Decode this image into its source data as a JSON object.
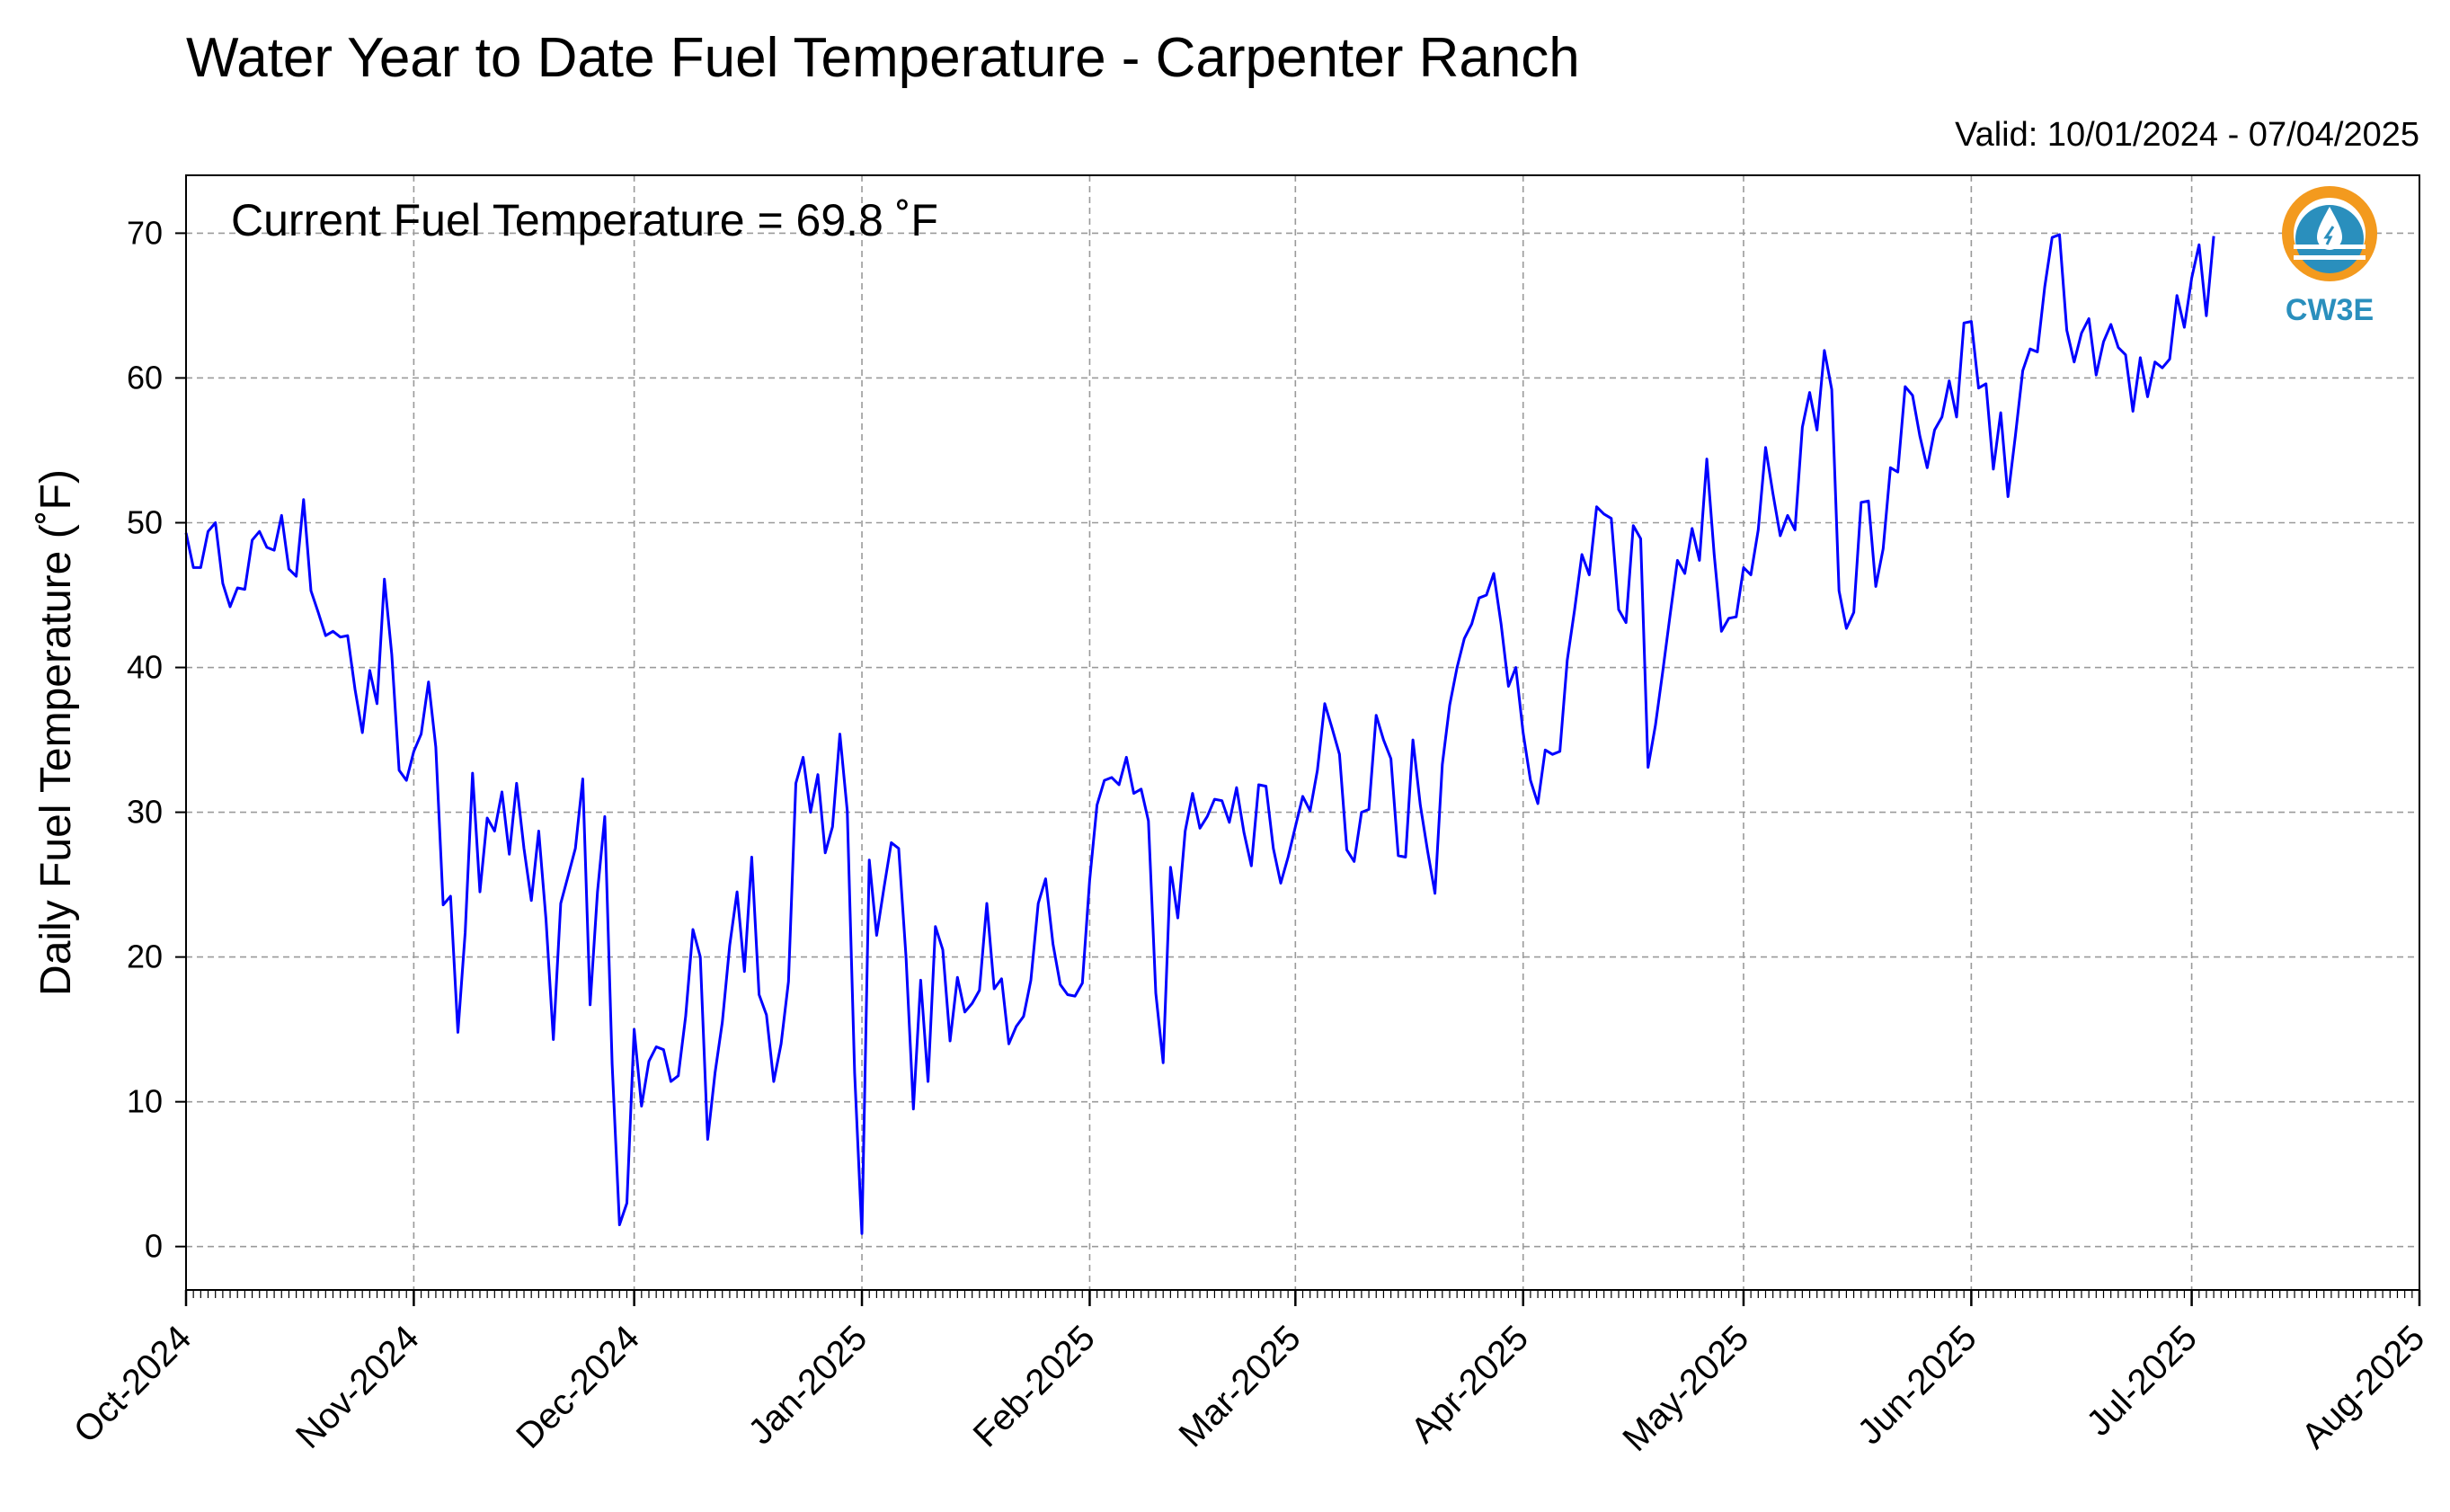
{
  "chart_data": {
    "type": "line",
    "title": "Water Year to Date Fuel Temperature - Carpenter Ranch",
    "subtitle": "Valid: 10/01/2024 - 07/04/2025",
    "ylabel": "Daily Fuel Temperature (˚F)",
    "xlabel": "",
    "annotation": "Current Fuel Temperature = 69.8 ˚F",
    "ylim": [
      -3,
      74
    ],
    "yticks": [
      0,
      10,
      20,
      30,
      40,
      50,
      60,
      70
    ],
    "xlim": [
      "2024-10-01",
      "2025-08-01"
    ],
    "xticks": [
      {
        "date": "2024-10-01",
        "label": "Oct-2024"
      },
      {
        "date": "2024-11-01",
        "label": "Nov-2024"
      },
      {
        "date": "2024-12-01",
        "label": "Dec-2024"
      },
      {
        "date": "2025-01-01",
        "label": "Jan-2025"
      },
      {
        "date": "2025-02-01",
        "label": "Feb-2025"
      },
      {
        "date": "2025-03-01",
        "label": "Mar-2025"
      },
      {
        "date": "2025-04-01",
        "label": "Apr-2025"
      },
      {
        "date": "2025-05-01",
        "label": "May-2025"
      },
      {
        "date": "2025-06-01",
        "label": "Jun-2025"
      },
      {
        "date": "2025-07-01",
        "label": "Jul-2025"
      },
      {
        "date": "2025-08-01",
        "label": "Aug-2025"
      }
    ],
    "grid": true,
    "line_color": "#0000ff",
    "series": [
      {
        "x_start": "2024-10-01",
        "x_step_days": 1,
        "values": [
          49.3,
          46.9,
          46.9,
          49.4,
          50.0,
          45.8,
          44.2,
          45.5,
          45.4,
          48.8,
          49.4,
          48.3,
          48.1,
          50.5,
          46.8,
          46.3,
          51.6,
          45.3,
          43.8,
          42.2,
          42.5,
          42.1,
          42.2,
          38.5,
          35.5,
          39.8,
          37.5,
          46.1,
          40.9,
          32.9,
          32.2,
          34.2,
          35.4,
          39.0,
          34.5,
          23.6,
          24.2,
          14.8,
          21.7,
          32.7,
          24.5,
          29.6,
          28.7,
          31.4,
          27.1,
          32.0,
          27.5,
          23.9,
          28.7,
          22.6,
          14.3,
          23.7,
          25.6,
          27.5,
          32.3,
          16.7,
          24.5,
          29.7,
          12.6,
          1.5,
          3.0,
          15.0,
          9.7,
          12.8,
          13.8,
          13.6,
          11.4,
          11.8,
          15.9,
          21.9,
          20.0,
          7.4,
          12.0,
          15.5,
          20.8,
          24.5,
          19.0,
          26.9,
          17.4,
          16.0,
          11.4,
          14.0,
          18.3,
          32.0,
          33.8,
          30.0,
          32.6,
          27.2,
          29.0,
          35.4,
          30.1,
          12.0,
          0.9,
          26.7,
          21.5,
          24.8,
          27.9,
          27.5,
          20.0,
          9.5,
          18.4,
          11.4,
          22.1,
          20.5,
          14.2,
          18.6,
          16.2,
          16.8,
          17.7,
          23.7,
          17.8,
          18.5,
          14.0,
          15.2,
          15.9,
          18.4,
          23.7,
          25.4,
          20.9,
          18.1,
          17.4,
          17.3,
          18.2,
          25.3,
          30.5,
          32.2,
          32.4,
          31.9,
          33.8,
          31.3,
          31.6,
          29.4,
          17.5,
          12.7,
          26.2,
          22.7,
          28.7,
          31.3,
          28.9,
          29.7,
          30.9,
          30.8,
          29.3,
          31.7,
          28.6,
          26.3,
          31.9,
          31.8,
          27.5,
          25.1,
          26.9,
          29.0,
          31.1,
          30.1,
          32.9,
          37.5,
          35.8,
          34.0,
          27.4,
          26.6,
          30.0,
          30.2,
          36.7,
          35.0,
          33.7,
          27.0,
          26.9,
          35.0,
          30.5,
          27.3,
          24.4,
          33.3,
          37.4,
          40.0,
          42.0,
          43.0,
          44.8,
          45.0,
          46.5,
          43.0,
          38.7,
          40.0,
          35.5,
          32.2,
          30.6,
          34.3,
          34.0,
          34.2,
          40.5,
          44.0,
          47.8,
          46.4,
          51.1,
          50.6,
          50.3,
          44.0,
          43.1,
          49.8,
          48.9,
          33.1,
          36.0,
          39.7,
          43.6,
          47.4,
          46.5,
          49.6,
          47.4,
          54.4,
          47.8,
          42.5,
          43.4,
          43.5,
          46.9,
          46.4,
          49.5,
          55.2,
          52.0,
          49.1,
          50.5,
          49.5,
          56.6,
          59.0,
          56.4,
          61.9,
          59.2,
          45.3,
          42.7,
          43.8,
          51.4,
          51.5,
          45.6,
          48.2,
          53.8,
          53.5,
          59.4,
          58.8,
          56.0,
          53.8,
          56.4,
          57.3,
          59.8,
          57.3,
          63.8,
          63.9,
          59.3,
          59.6,
          53.7,
          57.6,
          51.8,
          56.0,
          60.5,
          62.0,
          61.8,
          66.3,
          69.7,
          69.9,
          63.3,
          61.1,
          63.1,
          64.1,
          60.2,
          62.5,
          63.7,
          62.1,
          61.6,
          57.7,
          61.4,
          58.7,
          61.1,
          60.7,
          61.3,
          65.7,
          63.5,
          66.9,
          69.2,
          64.3,
          69.8
        ]
      }
    ]
  },
  "logo": {
    "text": "CW3E",
    "orange": "#f39a1e",
    "teal": "#2a8fbd"
  }
}
